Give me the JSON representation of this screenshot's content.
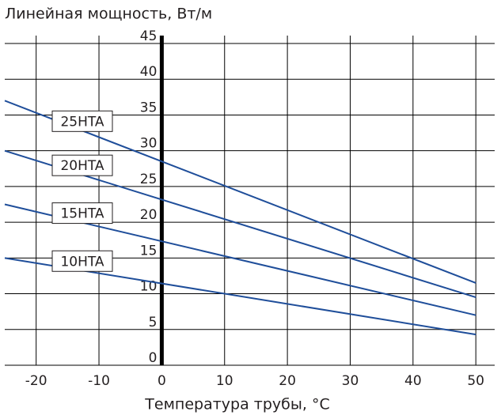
{
  "chart_data": {
    "type": "line",
    "title": "Линейная мощность, Вт/м",
    "x_label": "Температура трубы, °C",
    "x": [
      -25,
      50
    ],
    "series": [
      {
        "name": "25HTA",
        "color": "#1f4e9a",
        "values": [
          37,
          11.5
        ]
      },
      {
        "name": "20HTA",
        "color": "#1f4e9a",
        "values": [
          30,
          9.5
        ]
      },
      {
        "name": "15HTA",
        "color": "#1f4e9a",
        "values": [
          22.5,
          7
        ]
      },
      {
        "name": "10HTA",
        "color": "#1f4e9a",
        "values": [
          15,
          4.3
        ]
      }
    ],
    "xlim": [
      -25,
      53
    ],
    "ylim": [
      0,
      45
    ],
    "xticks": [
      -20,
      -10,
      0,
      10,
      20,
      30,
      40,
      50
    ],
    "yticks": [
      0,
      5,
      10,
      15,
      20,
      25,
      30,
      35,
      40,
      45
    ],
    "grid": true
  }
}
